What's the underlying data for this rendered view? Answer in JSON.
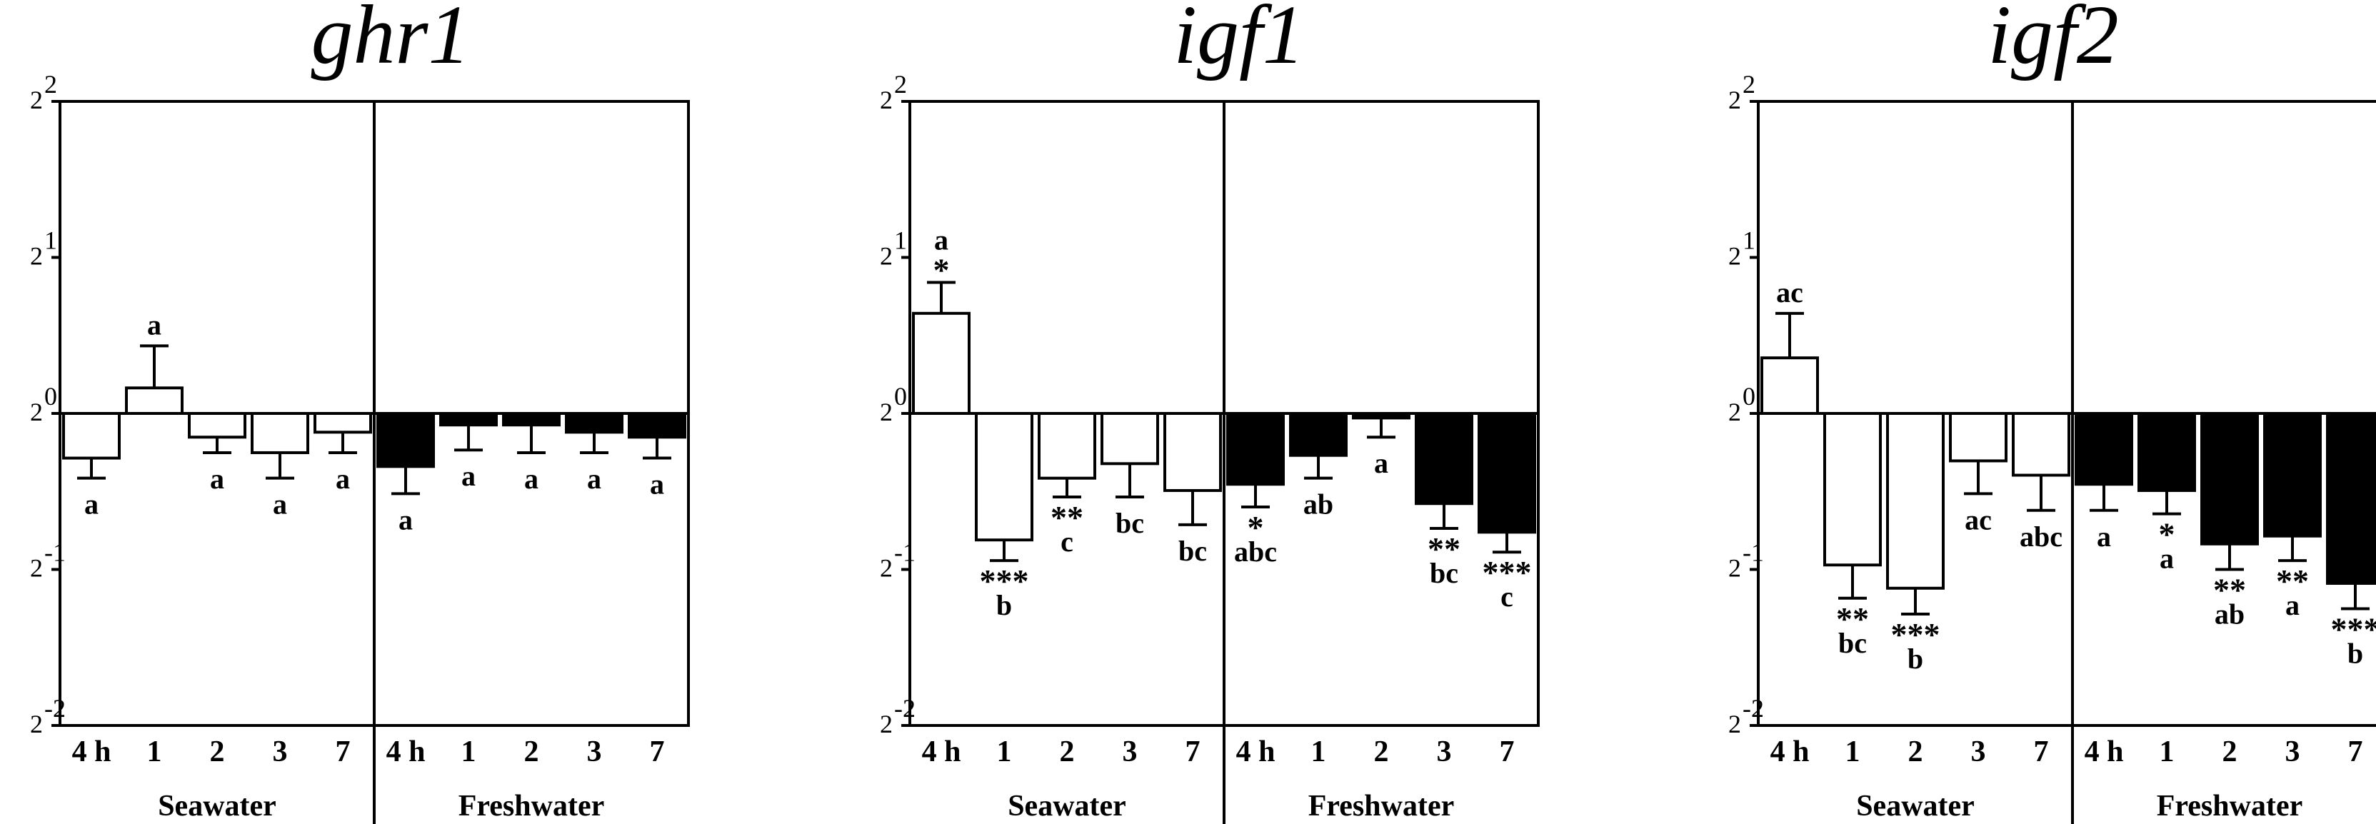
{
  "chart_data": [
    {
      "type": "bar",
      "title": "ghr1",
      "y_scale": "log2",
      "ylim": [
        0.25,
        4
      ],
      "y_ticks": [
        "2",
        "2",
        "2",
        "2",
        "2"
      ],
      "y_tick_exponents": [
        "-2",
        "-1",
        "0",
        "1",
        "2"
      ],
      "groups": [
        {
          "name": "Seawater",
          "categories": [
            "4 h",
            "1",
            "2",
            "3",
            "7"
          ],
          "fill": "#ffffff",
          "values": [
            0.82,
            1.12,
            0.9,
            0.84,
            0.92
          ],
          "error": [
            0.75,
            1.35,
            0.84,
            0.75,
            0.84
          ],
          "letters": [
            "a",
            "a",
            "a",
            "a",
            "a"
          ],
          "stars": [
            "",
            "",
            "",
            "",
            ""
          ]
        },
        {
          "name": "Freshwater",
          "categories": [
            "4 h",
            "1",
            "2",
            "3",
            "7"
          ],
          "fill": "#000000",
          "values": [
            0.79,
            0.95,
            0.95,
            0.92,
            0.9
          ],
          "error": [
            0.7,
            0.85,
            0.84,
            0.84,
            0.82
          ],
          "letters": [
            "a",
            "a",
            "a",
            "a",
            "a"
          ],
          "stars": [
            "",
            "",
            "",
            "",
            ""
          ]
        }
      ]
    },
    {
      "type": "bar",
      "title": "igf1",
      "y_scale": "log2",
      "ylim": [
        0.25,
        4
      ],
      "y_ticks": [
        "2",
        "2",
        "2",
        "2",
        "2"
      ],
      "y_tick_exponents": [
        "-2",
        "-1",
        "0",
        "1",
        "2"
      ],
      "groups": [
        {
          "name": "Seawater",
          "categories": [
            "4 h",
            "1",
            "2",
            "3",
            "7"
          ],
          "fill": "#ffffff",
          "values": [
            1.56,
            0.57,
            0.75,
            0.8,
            0.71
          ],
          "error": [
            1.79,
            0.52,
            0.69,
            0.69,
            0.61
          ],
          "letters": [
            "a",
            "b",
            "c",
            "bc",
            "bc"
          ],
          "stars": [
            "*",
            "***",
            "**",
            "",
            ""
          ]
        },
        {
          "name": "Freshwater",
          "categories": [
            "4 h",
            "1",
            "2",
            "3",
            "7"
          ],
          "fill": "#000000",
          "values": [
            0.73,
            0.83,
            0.98,
            0.67,
            0.59
          ],
          "error": [
            0.66,
            0.75,
            0.9,
            0.6,
            0.54
          ],
          "letters": [
            "abc",
            "ab",
            "a",
            "bc",
            "c"
          ],
          "stars": [
            "*",
            "",
            "",
            "**",
            "***"
          ]
        }
      ]
    },
    {
      "type": "bar",
      "title": "igf2",
      "y_scale": "log2",
      "ylim": [
        0.25,
        4
      ],
      "y_ticks": [
        "2",
        "2",
        "2",
        "2",
        "2"
      ],
      "y_tick_exponents": [
        "-2",
        "-1",
        "0",
        "1",
        "2"
      ],
      "groups": [
        {
          "name": "Seawater",
          "categories": [
            "4 h",
            "1",
            "2",
            "3",
            "7"
          ],
          "fill": "#ffffff",
          "values": [
            1.28,
            0.51,
            0.46,
            0.81,
            0.76
          ],
          "error": [
            1.56,
            0.44,
            0.41,
            0.7,
            0.65
          ],
          "letters": [
            "ac",
            "bc",
            "b",
            "ac",
            "abc"
          ],
          "stars": [
            "",
            "**",
            "***",
            "",
            ""
          ]
        },
        {
          "name": "Freshwater",
          "categories": [
            "4 h",
            "1",
            "2",
            "3",
            "7"
          ],
          "fill": "#000000",
          "values": [
            0.73,
            0.71,
            0.56,
            0.58,
            0.47
          ],
          "error": [
            0.65,
            0.64,
            0.5,
            0.52,
            0.42
          ],
          "letters": [
            "a",
            "a",
            "ab",
            "a",
            "b"
          ],
          "stars": [
            "",
            "*",
            "**",
            "**",
            "***"
          ]
        }
      ]
    }
  ]
}
